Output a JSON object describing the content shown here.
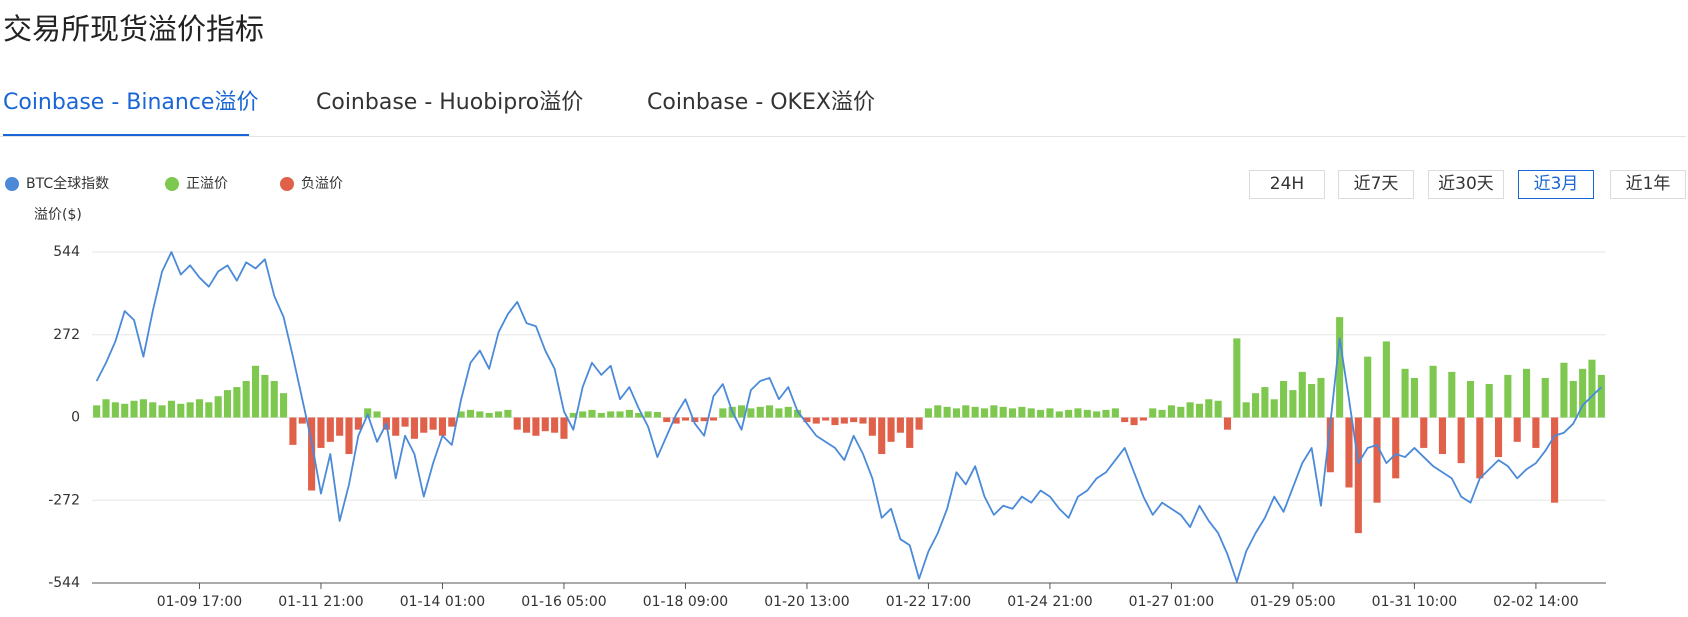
{
  "header": {
    "title": "交易所现货溢价指标"
  },
  "tabs": [
    "Coinbase - Binance溢价",
    "Coinbase - Huobipro溢价",
    "Coinbase - OKEX溢价"
  ],
  "active_tab": 0,
  "time_ranges": [
    "24H",
    "近7天",
    "近30天",
    "近3月",
    "近1年"
  ],
  "active_range": 3,
  "chart_data": {
    "type": "bar",
    "y_label": "溢价($)",
    "ylim": [
      -544,
      544
    ],
    "yticks": [
      -544,
      -272,
      0,
      272,
      544
    ],
    "grid": true,
    "categories": [
      null,
      null,
      null,
      null,
      null,
      null,
      null,
      null,
      null,
      null,
      null,
      "01-09 17:00",
      null,
      null,
      null,
      null,
      null,
      null,
      null,
      null,
      null,
      null,
      null,
      null,
      "01-11 21:00",
      null,
      null,
      null,
      null,
      null,
      null,
      null,
      null,
      null,
      null,
      null,
      null,
      "01-14 01:00",
      null,
      null,
      null,
      null,
      null,
      null,
      null,
      null,
      null,
      null,
      null,
      null,
      "01-16 05:00",
      null,
      null,
      null,
      null,
      null,
      null,
      null,
      null,
      null,
      null,
      null,
      null,
      "01-18 09:00",
      null,
      null,
      null,
      null,
      null,
      null,
      null,
      null,
      null,
      null,
      null,
      null,
      "01-20 13:00",
      null,
      null,
      null,
      null,
      null,
      null,
      null,
      null,
      null,
      null,
      null,
      null,
      "01-22 17:00",
      null,
      null,
      null,
      null,
      null,
      null,
      null,
      null,
      null,
      null,
      null,
      null,
      "01-24 21:00",
      null,
      null,
      null,
      null,
      null,
      null,
      null,
      null,
      null,
      null,
      null,
      null,
      "01-27 01:00",
      null,
      null,
      null,
      null,
      null,
      null,
      null,
      null,
      null,
      null,
      null,
      null,
      "01-29 05:00",
      null,
      null,
      null,
      null,
      null,
      null,
      null,
      null,
      null,
      null,
      null,
      null,
      "01-31 10:00",
      null,
      null,
      null,
      null,
      null,
      null,
      null,
      null,
      null,
      null,
      null,
      null,
      "02-02 14:00",
      null,
      null,
      null,
      null,
      null,
      null,
      null
    ],
    "series": [
      {
        "name": "BTC全球指数",
        "type": "line",
        "color": "#4a8ad9",
        "values": [
          120,
          180,
          250,
          350,
          320,
          200,
          350,
          480,
          544,
          470,
          500,
          460,
          430,
          480,
          500,
          450,
          510,
          490,
          520,
          400,
          330,
          200,
          60,
          -80,
          -250,
          -120,
          -340,
          -220,
          -60,
          10,
          -80,
          -20,
          -200,
          -60,
          -120,
          -260,
          -150,
          -60,
          -90,
          60,
          180,
          220,
          160,
          280,
          340,
          380,
          310,
          300,
          220,
          160,
          20,
          -40,
          100,
          180,
          140,
          170,
          60,
          100,
          30,
          -30,
          -130,
          -60,
          10,
          60,
          -20,
          -60,
          70,
          110,
          20,
          -40,
          90,
          120,
          130,
          60,
          100,
          20,
          -20,
          -60,
          -80,
          -100,
          -140,
          -60,
          -120,
          -200,
          -330,
          -300,
          -400,
          -420,
          -530,
          -440,
          -380,
          -300,
          -180,
          -220,
          -160,
          -260,
          -320,
          -290,
          -300,
          -260,
          -280,
          -240,
          -260,
          -300,
          -330,
          -260,
          -240,
          -200,
          -180,
          -140,
          -100,
          -180,
          -260,
          -320,
          -280,
          -300,
          -320,
          -360,
          -290,
          -340,
          -380,
          -450,
          -540,
          -440,
          -380,
          -330,
          -260,
          -310,
          -230,
          -150,
          -100,
          -290,
          -20,
          260,
          60,
          -150,
          -100,
          -90,
          -150,
          -120,
          -130,
          -100,
          -130,
          -160,
          -180,
          -200,
          -260,
          -280,
          -200,
          -170,
          -140,
          -160,
          -200,
          -170,
          -150,
          -110,
          -60,
          -50,
          -20,
          40,
          70,
          100
        ]
      },
      {
        "name": "正溢价",
        "type": "bar",
        "color": "#7ec850",
        "values": [
          40,
          60,
          50,
          45,
          55,
          60,
          50,
          40,
          55,
          45,
          50,
          60,
          50,
          70,
          90,
          100,
          120,
          170,
          140,
          120,
          80,
          null,
          null,
          null,
          null,
          null,
          null,
          null,
          null,
          30,
          20,
          null,
          null,
          null,
          null,
          null,
          null,
          null,
          null,
          20,
          25,
          20,
          15,
          20,
          25,
          null,
          null,
          null,
          null,
          null,
          null,
          15,
          20,
          25,
          15,
          20,
          20,
          25,
          15,
          20,
          18,
          null,
          null,
          null,
          null,
          null,
          null,
          30,
          35,
          40,
          30,
          35,
          40,
          30,
          35,
          25,
          null,
          null,
          null,
          null,
          null,
          null,
          null,
          null,
          null,
          null,
          null,
          null,
          null,
          30,
          40,
          35,
          30,
          40,
          35,
          30,
          40,
          35,
          30,
          35,
          30,
          25,
          30,
          20,
          25,
          30,
          25,
          20,
          25,
          30,
          null,
          null,
          null,
          30,
          25,
          40,
          35,
          50,
          45,
          60,
          55,
          null,
          260,
          50,
          80,
          100,
          60,
          120,
          90,
          150,
          110,
          130,
          null,
          330,
          null,
          null,
          200,
          null,
          250,
          null,
          160,
          130,
          null,
          170,
          null,
          150,
          null,
          120,
          null,
          110,
          null,
          140,
          null,
          160,
          null,
          130,
          null,
          180,
          120,
          160,
          190,
          140
        ]
      },
      {
        "name": "负溢价",
        "type": "bar",
        "color": "#e0604a",
        "values": [
          null,
          null,
          null,
          null,
          null,
          null,
          null,
          null,
          null,
          null,
          null,
          null,
          null,
          null,
          null,
          null,
          null,
          null,
          null,
          null,
          null,
          -90,
          -20,
          -240,
          -100,
          -80,
          -60,
          -120,
          -40,
          null,
          null,
          -40,
          -60,
          -30,
          -70,
          -50,
          -40,
          -60,
          -30,
          null,
          null,
          null,
          null,
          null,
          null,
          -40,
          -50,
          -60,
          -45,
          -50,
          -70,
          null,
          null,
          null,
          null,
          null,
          null,
          null,
          null,
          null,
          null,
          -15,
          -20,
          -10,
          -15,
          -12,
          -10,
          null,
          null,
          null,
          null,
          null,
          null,
          null,
          null,
          null,
          -15,
          -20,
          -10,
          -25,
          -20,
          -15,
          -20,
          -60,
          -120,
          -80,
          -50,
          -100,
          -40,
          null,
          null,
          null,
          null,
          null,
          null,
          null,
          null,
          null,
          null,
          null,
          null,
          null,
          null,
          null,
          null,
          null,
          null,
          null,
          null,
          null,
          -15,
          -25,
          -10,
          null,
          null,
          null,
          null,
          null,
          null,
          null,
          null,
          -40,
          null,
          null,
          null,
          null,
          null,
          null,
          null,
          null,
          null,
          null,
          -180,
          null,
          -230,
          -380,
          null,
          -280,
          null,
          -200,
          null,
          null,
          -100,
          null,
          -120,
          null,
          -150,
          null,
          -200,
          null,
          -130,
          null,
          -80,
          null,
          -100,
          null,
          -280,
          null,
          null,
          null,
          null,
          null
        ]
      }
    ]
  }
}
